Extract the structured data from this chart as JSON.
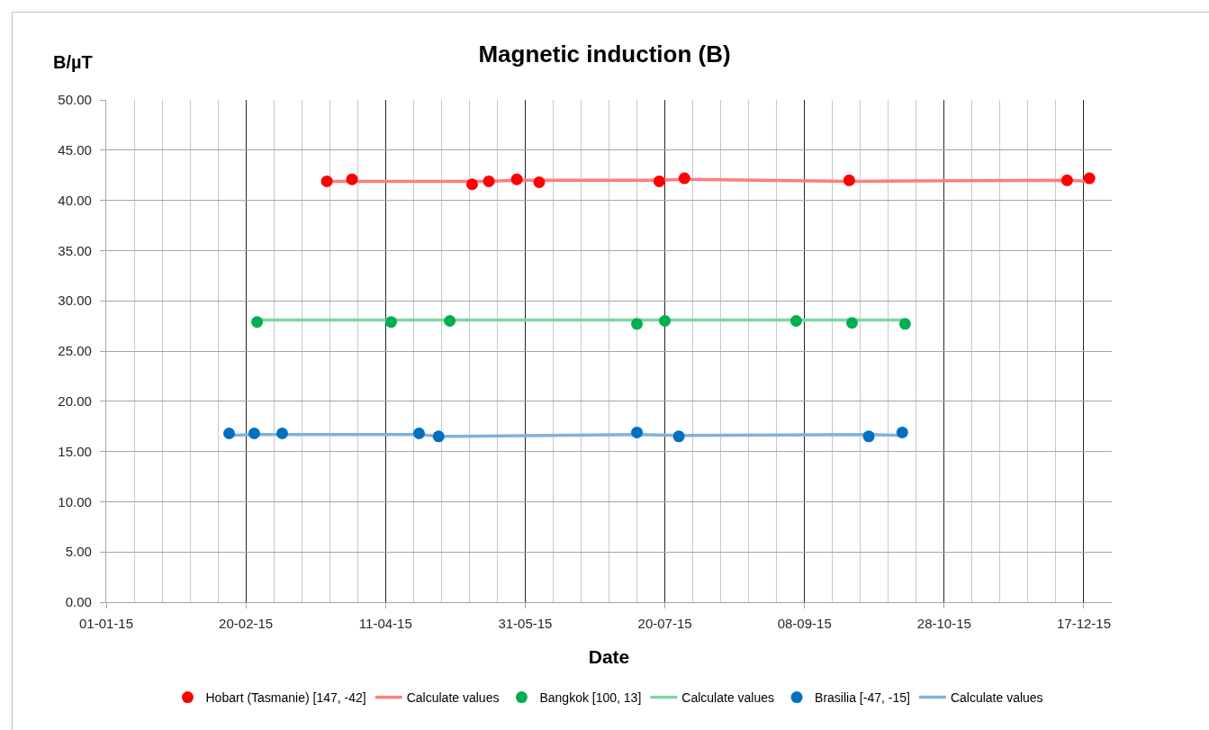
{
  "chart_data": {
    "type": "scatter",
    "title": "Magnetic induction (B)",
    "xlabel": "Date",
    "ylabel": "B/µT",
    "xlim": [
      "--01-01",
      "--12-27"
    ],
    "xticks": [
      {
        "value": "--01-01",
        "label": "01-01-15"
      },
      {
        "value": "--01-11",
        "label": null
      },
      {
        "value": "--01-21",
        "label": null
      },
      {
        "value": "--01-31",
        "label": null
      },
      {
        "value": "--02-10",
        "label": null
      },
      {
        "value": "--02-20",
        "label": "20-02-15"
      },
      {
        "value": "--03-02",
        "label": null
      },
      {
        "value": "--03-12",
        "label": null
      },
      {
        "value": "--03-22",
        "label": null
      },
      {
        "value": "--04-01",
        "label": null
      },
      {
        "value": "--04-11",
        "label": "11-04-15"
      },
      {
        "value": "--04-21",
        "label": null
      },
      {
        "value": "--05-01",
        "label": null
      },
      {
        "value": "--05-11",
        "label": null
      },
      {
        "value": "--05-21",
        "label": null
      },
      {
        "value": "--05-31",
        "label": "31-05-15"
      },
      {
        "value": "--06-10",
        "label": null
      },
      {
        "value": "--06-20",
        "label": null
      },
      {
        "value": "--06-30",
        "label": null
      },
      {
        "value": "--07-10",
        "label": null
      },
      {
        "value": "--07-20",
        "label": "20-07-15"
      },
      {
        "value": "--07-30",
        "label": null
      },
      {
        "value": "--08-09",
        "label": null
      },
      {
        "value": "--08-19",
        "label": null
      },
      {
        "value": "--08-29",
        "label": null
      },
      {
        "value": "--09-08",
        "label": "08-09-15"
      },
      {
        "value": "--09-18",
        "label": null
      },
      {
        "value": "--09-28",
        "label": null
      },
      {
        "value": "--10-08",
        "label": null
      },
      {
        "value": "--10-18",
        "label": null
      },
      {
        "value": "--10-28",
        "label": "28-10-15"
      },
      {
        "value": "--11-07",
        "label": null
      },
      {
        "value": "--11-17",
        "label": null
      },
      {
        "value": "--11-27",
        "label": null
      },
      {
        "value": "--12-07",
        "label": null
      },
      {
        "value": "--12-17",
        "label": "17-12-15"
      }
    ],
    "ylim": [
      0,
      50
    ],
    "yticks": [
      {
        "value": 0,
        "label": "0.00"
      },
      {
        "value": 5,
        "label": "5.00"
      },
      {
        "value": 10,
        "label": "10.00"
      },
      {
        "value": 15,
        "label": "15.00"
      },
      {
        "value": 20,
        "label": "20.00"
      },
      {
        "value": 25,
        "label": "25.00"
      },
      {
        "value": 30,
        "label": "30.00"
      },
      {
        "value": 35,
        "label": "35.00"
      },
      {
        "value": 40,
        "label": "40.00"
      },
      {
        "value": 45,
        "label": "45.00"
      },
      {
        "value": 50,
        "label": "50.00"
      }
    ],
    "grid": true,
    "legend": "bottom",
    "marker": "circle",
    "series": [
      {
        "name": "Hobart (Tasmanie) [147, -42]",
        "color": "#ff0000",
        "x": [
          "--03-21",
          "--03-30",
          "--05-12",
          "--05-18",
          "--05-28",
          "--06-05",
          "--07-18",
          "--07-27",
          "--09-24",
          "--12-11",
          "--12-19"
        ],
        "values": [
          41.9,
          42.1,
          41.6,
          41.9,
          42.1,
          41.8,
          41.9,
          42.2,
          42.0,
          42.0,
          42.2
        ]
      },
      {
        "name": "Calculate values",
        "type": "line",
        "marker": "none",
        "color": "#ff7c80",
        "x": [
          "--03-21",
          "--03-30",
          "--05-12",
          "--05-18",
          "--05-28",
          "--06-05",
          "--07-18",
          "--07-27",
          "--09-24",
          "--12-11",
          "--12-19"
        ],
        "values": [
          41.9,
          41.9,
          41.9,
          41.9,
          42.0,
          42.0,
          42.0,
          42.1,
          41.9,
          42.0,
          41.9
        ]
      },
      {
        "name": "Bangkok [100, 13]",
        "color": "#00b050",
        "x": [
          "--02-24",
          "--04-13",
          "--05-04",
          "--07-10",
          "--07-20",
          "--09-05",
          "--09-25",
          "--10-14"
        ],
        "values": [
          27.9,
          27.9,
          28.0,
          27.7,
          28.0,
          28.0,
          27.8,
          27.7
        ]
      },
      {
        "name": "Calculate values",
        "type": "line",
        "marker": "none",
        "color": "#7fd6a4",
        "x": [
          "--02-24",
          "--10-14"
        ],
        "values": [
          28.1,
          28.1
        ]
      },
      {
        "name": "Brasilia [-47, -15]",
        "color": "#0070c0",
        "x": [
          "--02-14",
          "--02-23",
          "--03-05",
          "--04-23",
          "--04-30",
          "--07-10",
          "--07-25",
          "--10-01",
          "--10-13"
        ],
        "values": [
          16.8,
          16.8,
          16.8,
          16.8,
          16.5,
          16.9,
          16.5,
          16.5,
          16.9
        ]
      },
      {
        "name": "Calculate values",
        "type": "line",
        "marker": "none",
        "color": "#7fb2e0",
        "x": [
          "--02-14",
          "--02-23",
          "--03-05",
          "--04-23",
          "--04-30",
          "--07-10",
          "--07-25",
          "--10-01",
          "--10-13"
        ],
        "values": [
          16.6,
          16.7,
          16.7,
          16.7,
          16.5,
          16.7,
          16.6,
          16.7,
          16.6
        ]
      }
    ]
  }
}
